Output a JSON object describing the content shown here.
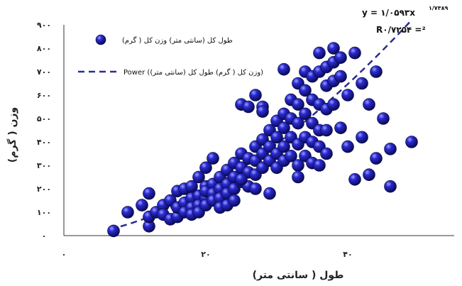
{
  "chart_data": {
    "type": "scatter",
    "title": "",
    "xlabel": "طول ( سانتی متر)",
    "ylabel": "وزن ( گرم)",
    "xlim": [
      0,
      55
    ],
    "ylim": [
      0,
      900
    ],
    "x_ticks": [
      {
        "value": 0,
        "label": "۰"
      },
      {
        "value": 20,
        "label": "۲۰"
      },
      {
        "value": 40,
        "label": "۴۰"
      }
    ],
    "y_ticks": [
      {
        "value": 0,
        "label": "۰"
      },
      {
        "value": 100,
        "label": "۱۰۰"
      },
      {
        "value": 200,
        "label": "۲۰۰"
      },
      {
        "value": 300,
        "label": "۳۰۰"
      },
      {
        "value": 400,
        "label": "۴۰۰"
      },
      {
        "value": 500,
        "label": "۵۰۰"
      },
      {
        "value": 600,
        "label": "۶۰۰"
      },
      {
        "value": 700,
        "label": "۷۰۰"
      },
      {
        "value": 800,
        "label": "۸۰۰"
      },
      {
        "value": 900,
        "label": "۹۰۰"
      }
    ],
    "grid": false,
    "legend_position": "top-left",
    "equation": "y = ۱/۰۵۹۳x",
    "equation_exponent": "۱/۷۳۸۹",
    "r_squared": "R۰/۷۲۵۴ =²",
    "series": [
      {
        "name": "طول کل (سانتی متر) وزن کل ( گرم)",
        "kind": "points",
        "color": "#1a1aa8",
        "points": [
          [
            7,
            20
          ],
          [
            9,
            100
          ],
          [
            11,
            130
          ],
          [
            12,
            180
          ],
          [
            12,
            40
          ],
          [
            12,
            80
          ],
          [
            13,
            100
          ],
          [
            14,
            130
          ],
          [
            14,
            90
          ],
          [
            15,
            150
          ],
          [
            15,
            70
          ],
          [
            16,
            190
          ],
          [
            16,
            80
          ],
          [
            16,
            120
          ],
          [
            17,
            140
          ],
          [
            17,
            200
          ],
          [
            17,
            100
          ],
          [
            18,
            160
          ],
          [
            18,
            120
          ],
          [
            18,
            210
          ],
          [
            18,
            90
          ],
          [
            19,
            250
          ],
          [
            19,
            170
          ],
          [
            19,
            130
          ],
          [
            19,
            100
          ],
          [
            20,
            210
          ],
          [
            20,
            160
          ],
          [
            20,
            190
          ],
          [
            20,
            290
          ],
          [
            20,
            130
          ],
          [
            21,
            220
          ],
          [
            21,
            180
          ],
          [
            21,
            150
          ],
          [
            21,
            330
          ],
          [
            22,
            250
          ],
          [
            22,
            200
          ],
          [
            22,
            160
          ],
          [
            22,
            120
          ],
          [
            23,
            280
          ],
          [
            23,
            220
          ],
          [
            23,
            180
          ],
          [
            23,
            130
          ],
          [
            24,
            310
          ],
          [
            24,
            250
          ],
          [
            24,
            200
          ],
          [
            24,
            150
          ],
          [
            25,
            350
          ],
          [
            25,
            290
          ],
          [
            25,
            230
          ],
          [
            25,
            560
          ],
          [
            26,
            330
          ],
          [
            26,
            270
          ],
          [
            26,
            550
          ],
          [
            26,
            210
          ],
          [
            27,
            380
          ],
          [
            27,
            320
          ],
          [
            27,
            260
          ],
          [
            27,
            200
          ],
          [
            28,
            410
          ],
          [
            28,
            350
          ],
          [
            28,
            290
          ],
          [
            28,
            550
          ],
          [
            28,
            530
          ],
          [
            29,
            450
          ],
          [
            29,
            380
          ],
          [
            29,
            320
          ],
          [
            29,
            180
          ],
          [
            30,
            490
          ],
          [
            30,
            420
          ],
          [
            30,
            350
          ],
          [
            30,
            290
          ],
          [
            31,
            520
          ],
          [
            31,
            460
          ],
          [
            31,
            380
          ],
          [
            31,
            320
          ],
          [
            32,
            580
          ],
          [
            32,
            500
          ],
          [
            32,
            420
          ],
          [
            32,
            340
          ],
          [
            33,
            650
          ],
          [
            33,
            560
          ],
          [
            33,
            480
          ],
          [
            33,
            390
          ],
          [
            33,
            300
          ],
          [
            33,
            250
          ],
          [
            34,
            700
          ],
          [
            34,
            620
          ],
          [
            34,
            520
          ],
          [
            34,
            420
          ],
          [
            34,
            340
          ],
          [
            35,
            680
          ],
          [
            35,
            580
          ],
          [
            35,
            480
          ],
          [
            35,
            400
          ],
          [
            35,
            310
          ],
          [
            36,
            700
          ],
          [
            36,
            780
          ],
          [
            36,
            560
          ],
          [
            36,
            450
          ],
          [
            36,
            380
          ],
          [
            36,
            300
          ],
          [
            37,
            720
          ],
          [
            37,
            640
          ],
          [
            37,
            540
          ],
          [
            37,
            450
          ],
          [
            37,
            350
          ],
          [
            38,
            660
          ],
          [
            38,
            800
          ],
          [
            38,
            740
          ],
          [
            38,
            560
          ],
          [
            39,
            760
          ],
          [
            39,
            680
          ],
          [
            39,
            460
          ],
          [
            40,
            600
          ],
          [
            40,
            380
          ],
          [
            41,
            780
          ],
          [
            41,
            240
          ],
          [
            42,
            650
          ],
          [
            42,
            420
          ],
          [
            43,
            560
          ],
          [
            44,
            700
          ],
          [
            45,
            500
          ],
          [
            46,
            210
          ],
          [
            46,
            370
          ],
          [
            44,
            330
          ],
          [
            43,
            260
          ],
          [
            49,
            400
          ],
          [
            31,
            710
          ],
          [
            27,
            600
          ],
          [
            25,
            240
          ]
        ]
      },
      {
        "name": "Power (وزن کل ( گرم) طول کل (سانتی متر))",
        "kind": "trendline",
        "color": "#2b2b8f",
        "dash": "dashed",
        "x_range": [
          8,
          49
        ]
      }
    ]
  }
}
